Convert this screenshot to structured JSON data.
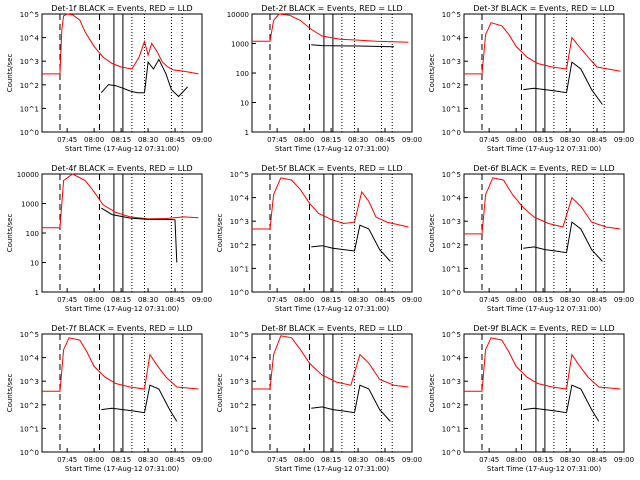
{
  "chart_data": [
    {
      "type": "line",
      "title": "Det-1f BLACK = Events, RED = LLD",
      "ylabel": "Counts/sec",
      "xlabel": "Start Time (17-Aug-12 07:31:00)",
      "yscale": "log",
      "ylim": [
        1,
        1000
      ],
      "y_ticks": [
        "10^0",
        "10^1",
        "10^2",
        "10^3",
        "10^4",
        "10^5"
      ],
      "x_ticks": [
        "07:45",
        "08:00",
        "08:15",
        "08:30",
        "08:45",
        "09:00"
      ],
      "dashed_lines": [
        "07:41",
        "08:03"
      ],
      "solid_lines": [
        "08:11",
        "08:16"
      ],
      "dotted_lines": [
        "08:21",
        "08:28",
        "08:43",
        "08:49"
      ],
      "series": [
        {
          "color": "#ff0000",
          "x": [
            "07:31",
            "07:41",
            "07:42",
            "07:43",
            "07:45",
            "07:48",
            "07:52",
            "07:55",
            "08:00",
            "08:05",
            "08:10",
            "08:15",
            "08:21",
            "08:25",
            "08:28",
            "08:30",
            "08:32",
            "08:35",
            "08:38",
            "08:41",
            "08:44",
            "08:50",
            "08:58"
          ],
          "y": [
            30,
            30,
            400,
            900,
            1000,
            950,
            700,
            350,
            150,
            80,
            55,
            45,
            40,
            80,
            200,
            90,
            180,
            110,
            60,
            45,
            38,
            35,
            30
          ]
        },
        {
          "color": "#000000",
          "x": [
            "08:04",
            "08:08",
            "08:12",
            "08:16",
            "08:20",
            "08:24",
            "08:28",
            "08:30",
            "08:33",
            "08:36",
            "08:40",
            "08:43",
            "08:47",
            "08:52"
          ],
          "y": [
            10,
            16,
            15,
            13,
            11,
            10,
            10,
            60,
            40,
            70,
            30,
            12,
            8,
            14
          ]
        }
      ]
    },
    {
      "type": "line",
      "title": "Det-2f BLACK = Events, RED = LLD",
      "ylabel": "",
      "xlabel": "Start Time (17-Aug-12 07:31:00)",
      "yscale": "log",
      "ylim": [
        1,
        10000
      ],
      "y_ticks": [
        "1",
        "10",
        "100",
        "1000",
        "10000"
      ],
      "x_ticks": [
        "07:45",
        "08:00",
        "08:15",
        "08:30",
        "08:45",
        "09:00"
      ],
      "dashed_lines": [
        "07:41",
        "08:03"
      ],
      "solid_lines": [
        "08:11",
        "08:16"
      ],
      "dotted_lines": [
        "08:21",
        "08:28",
        "08:43",
        "08:49"
      ],
      "series": [
        {
          "color": "#ff0000",
          "x": [
            "07:31",
            "07:41",
            "07:43",
            "07:46",
            "07:52",
            "07:58",
            "08:04",
            "08:10",
            "08:20",
            "08:30",
            "08:40",
            "08:50",
            "08:58"
          ],
          "y": [
            1200,
            1200,
            6000,
            10000,
            9000,
            6000,
            3000,
            1800,
            1400,
            1300,
            1200,
            1150,
            1100
          ]
        },
        {
          "color": "#000000",
          "x": [
            "08:04",
            "08:10",
            "08:20",
            "08:30",
            "08:40",
            "08:50"
          ],
          "y": [
            900,
            850,
            830,
            820,
            800,
            780
          ]
        }
      ]
    },
    {
      "type": "line",
      "title": "Det-3f BLACK = Events, RED = LLD",
      "ylabel": "Counts/sec",
      "xlabel": "Start Time (17-Aug-12 07:31:00)",
      "yscale": "log",
      "ylim": [
        1,
        1000
      ],
      "y_ticks": [
        "10^0",
        "10^1",
        "10^2",
        "10^3",
        "10^4",
        "10^5"
      ],
      "x_ticks": [
        "07:45",
        "08:00",
        "08:15",
        "08:30",
        "08:45",
        "09:00"
      ],
      "dashed_lines": [
        "07:41",
        "08:03"
      ],
      "solid_lines": [
        "08:11",
        "08:16"
      ],
      "dotted_lines": [
        "08:21",
        "08:28",
        "08:43",
        "08:49"
      ],
      "series": [
        {
          "color": "#ff0000",
          "x": [
            "07:31",
            "07:41",
            "07:43",
            "07:46",
            "07:52",
            "07:56",
            "08:00",
            "08:06",
            "08:12",
            "08:20",
            "08:28",
            "08:31",
            "08:35",
            "08:40",
            "08:45",
            "08:58"
          ],
          "y": [
            30,
            30,
            300,
            600,
            500,
            300,
            150,
            80,
            55,
            45,
            40,
            250,
            150,
            80,
            45,
            35
          ]
        },
        {
          "color": "#000000",
          "x": [
            "08:04",
            "08:10",
            "08:16",
            "08:22",
            "08:28",
            "08:31",
            "08:36",
            "08:42",
            "08:48"
          ],
          "y": [
            12,
            13,
            12,
            11,
            10,
            60,
            40,
            12,
            5
          ]
        }
      ]
    },
    {
      "type": "line",
      "title": "Det-4f BLACK = Events, RED = LLD",
      "ylabel": "Counts/sec",
      "xlabel": "Start Time (17-Aug-12 07:31:00)",
      "yscale": "log",
      "ylim": [
        1,
        10000
      ],
      "y_ticks": [
        "1",
        "10",
        "100",
        "1000",
        "10000"
      ],
      "x_ticks": [
        "07:45",
        "08:00",
        "08:15",
        "08:30",
        "08:45",
        "09:00"
      ],
      "dashed_lines": [
        "07:41",
        "08:03"
      ],
      "solid_lines": [
        "08:11",
        "08:16"
      ],
      "dotted_lines": [
        "08:21",
        "08:28",
        "08:43",
        "08:49"
      ],
      "series": [
        {
          "color": "#ff0000",
          "x": [
            "07:31",
            "07:41",
            "07:43",
            "07:48",
            "07:55",
            "08:00",
            "08:05",
            "08:12",
            "08:20",
            "08:30",
            "08:40",
            "08:50",
            "08:58"
          ],
          "y": [
            150,
            150,
            6000,
            10000,
            6000,
            2500,
            900,
            500,
            350,
            300,
            310,
            350,
            330
          ]
        },
        {
          "color": "#000000",
          "x": [
            "08:04",
            "08:10",
            "08:20",
            "08:30",
            "08:40",
            "08:45",
            "08:46"
          ],
          "y": [
            700,
            420,
            320,
            290,
            290,
            280,
            10
          ]
        }
      ]
    },
    {
      "type": "line",
      "title": "Det-5f BLACK = Events, RED = LLD",
      "ylabel": "Counts/sec",
      "xlabel": "Start Time (17-Aug-12 07:31:00)",
      "yscale": "log",
      "ylim": [
        1,
        1000
      ],
      "y_ticks": [
        "10^0",
        "10^1",
        "10^2",
        "10^3",
        "10^4",
        "10^5"
      ],
      "x_ticks": [
        "07:45",
        "08:00",
        "08:15",
        "08:30",
        "08:45",
        "09:00"
      ],
      "dashed_lines": [
        "07:41",
        "08:03"
      ],
      "solid_lines": [
        "08:11",
        "08:16"
      ],
      "dotted_lines": [
        "08:21",
        "08:28",
        "08:43",
        "08:49"
      ],
      "series": [
        {
          "color": "#ff0000",
          "x": [
            "07:31",
            "07:41",
            "07:43",
            "07:47",
            "07:53",
            "07:58",
            "08:03",
            "08:08",
            "08:15",
            "08:22",
            "08:28",
            "08:32",
            "08:36",
            "08:40",
            "08:46",
            "08:58"
          ],
          "y": [
            40,
            40,
            300,
            800,
            700,
            400,
            180,
            100,
            70,
            55,
            60,
            350,
            200,
            80,
            60,
            45
          ]
        },
        {
          "color": "#000000",
          "x": [
            "08:04",
            "08:10",
            "08:16",
            "08:22",
            "08:28",
            "08:31",
            "08:36",
            "08:42",
            "08:48"
          ],
          "y": [
            14,
            15,
            13,
            12,
            11,
            50,
            40,
            12,
            6
          ]
        }
      ]
    },
    {
      "type": "line",
      "title": "Det-6f BLACK = Events, RED = LLD",
      "ylabel": "Counts/sec",
      "xlabel": "Start Time (17-Aug-12 07:31:00)",
      "yscale": "log",
      "ylim": [
        1,
        1000
      ],
      "y_ticks": [
        "10^0",
        "10^1",
        "10^2",
        "10^3",
        "10^4",
        "10^5"
      ],
      "x_ticks": [
        "07:45",
        "08:00",
        "08:15",
        "08:30",
        "08:45",
        "09:00"
      ],
      "dashed_lines": [
        "07:41",
        "08:03"
      ],
      "solid_lines": [
        "08:11",
        "08:16"
      ],
      "dotted_lines": [
        "08:21",
        "08:28",
        "08:43",
        "08:49"
      ],
      "series": [
        {
          "color": "#ff0000",
          "x": [
            "07:31",
            "07:41",
            "07:43",
            "07:47",
            "07:53",
            "07:58",
            "08:04",
            "08:10",
            "08:18",
            "08:26",
            "08:31",
            "08:36",
            "08:42",
            "08:50",
            "08:58"
          ],
          "y": [
            30,
            30,
            300,
            800,
            700,
            300,
            140,
            80,
            55,
            45,
            250,
            150,
            60,
            45,
            40
          ]
        },
        {
          "color": "#000000",
          "x": [
            "08:04",
            "08:10",
            "08:16",
            "08:22",
            "08:28",
            "08:31",
            "08:36",
            "08:42",
            "08:48"
          ],
          "y": [
            13,
            14,
            12,
            11,
            10,
            60,
            40,
            12,
            6
          ]
        }
      ]
    },
    {
      "type": "line",
      "title": "Det-7f BLACK = Events, RED = LLD",
      "ylabel": "Counts/sec",
      "xlabel": "Start Time (17-Aug-12 07:31:00)",
      "yscale": "log",
      "ylim": [
        1,
        1000
      ],
      "y_ticks": [
        "10^0",
        "10^1",
        "10^2",
        "10^3",
        "10^4",
        "10^5"
      ],
      "x_ticks": [
        "07:45",
        "08:00",
        "08:15",
        "08:30",
        "08:45",
        "09:00"
      ],
      "dashed_lines": [
        "07:41",
        "08:03"
      ],
      "solid_lines": [
        "08:11",
        "08:16"
      ],
      "dotted_lines": [
        "08:21",
        "08:28",
        "08:43",
        "08:49"
      ],
      "series": [
        {
          "color": "#ff0000",
          "x": [
            "07:31",
            "07:41",
            "07:43",
            "07:46",
            "07:52",
            "07:56",
            "08:00",
            "08:06",
            "08:12",
            "08:20",
            "08:28",
            "08:31",
            "08:35",
            "08:40",
            "08:46",
            "08:58"
          ],
          "y": [
            35,
            35,
            400,
            800,
            700,
            350,
            150,
            80,
            55,
            45,
            40,
            300,
            160,
            80,
            45,
            40
          ]
        },
        {
          "color": "#000000",
          "x": [
            "08:04",
            "08:10",
            "08:16",
            "08:22",
            "08:28",
            "08:31",
            "08:36",
            "08:42",
            "08:46"
          ],
          "y": [
            12,
            13,
            12,
            11,
            10,
            50,
            40,
            12,
            6
          ]
        }
      ]
    },
    {
      "type": "line",
      "title": "Det-8f BLACK = Events, RED = LLD",
      "ylabel": "Counts/sec",
      "xlabel": "Start Time (17-Aug-12 07:31:00)",
      "yscale": "log",
      "ylim": [
        1,
        1000
      ],
      "y_ticks": [
        "10^0",
        "10^1",
        "10^2",
        "10^3",
        "10^4",
        "10^5"
      ],
      "x_ticks": [
        "07:45",
        "08:00",
        "08:15",
        "08:30",
        "08:45",
        "09:00"
      ],
      "dashed_lines": [
        "07:41",
        "08:03"
      ],
      "solid_lines": [
        "08:11",
        "08:16"
      ],
      "dotted_lines": [
        "08:21",
        "08:28",
        "08:43",
        "08:49"
      ],
      "series": [
        {
          "color": "#ff0000",
          "x": [
            "07:31",
            "07:41",
            "07:43",
            "07:47",
            "07:53",
            "07:58",
            "08:03",
            "08:10",
            "08:18",
            "08:26",
            "08:31",
            "08:36",
            "08:42",
            "08:50",
            "08:58"
          ],
          "y": [
            40,
            40,
            300,
            900,
            800,
            400,
            180,
            90,
            60,
            50,
            300,
            180,
            70,
            50,
            45
          ]
        },
        {
          "color": "#000000",
          "x": [
            "08:04",
            "08:10",
            "08:16",
            "08:22",
            "08:28",
            "08:31",
            "08:36",
            "08:42",
            "08:48"
          ],
          "y": [
            13,
            14,
            12,
            11,
            10,
            50,
            40,
            12,
            6
          ]
        }
      ]
    },
    {
      "type": "line",
      "title": "Det-9f BLACK = Events, RED = LLD",
      "ylabel": "Counts/sec",
      "xlabel": "Start Time (17-Aug-12 07:31:00)",
      "yscale": "log",
      "ylim": [
        1,
        1000
      ],
      "y_ticks": [
        "10^0",
        "10^1",
        "10^2",
        "10^3",
        "10^4",
        "10^5"
      ],
      "x_ticks": [
        "07:45",
        "08:00",
        "08:15",
        "08:30",
        "08:45",
        "09:00"
      ],
      "dashed_lines": [
        "07:41",
        "08:03"
      ],
      "solid_lines": [
        "08:11",
        "08:16"
      ],
      "dotted_lines": [
        "08:21",
        "08:28",
        "08:43",
        "08:49"
      ],
      "series": [
        {
          "color": "#ff0000",
          "x": [
            "07:31",
            "07:41",
            "07:43",
            "07:46",
            "07:52",
            "07:56",
            "08:00",
            "08:06",
            "08:12",
            "08:20",
            "08:28",
            "08:31",
            "08:35",
            "08:40",
            "08:46",
            "08:58"
          ],
          "y": [
            35,
            35,
            400,
            800,
            700,
            350,
            150,
            80,
            55,
            45,
            40,
            300,
            160,
            80,
            45,
            40
          ]
        },
        {
          "color": "#000000",
          "x": [
            "08:04",
            "08:10",
            "08:16",
            "08:22",
            "08:28",
            "08:31",
            "08:36",
            "08:42",
            "08:46"
          ],
          "y": [
            12,
            13,
            12,
            11,
            10,
            50,
            40,
            12,
            6
          ]
        }
      ]
    }
  ]
}
